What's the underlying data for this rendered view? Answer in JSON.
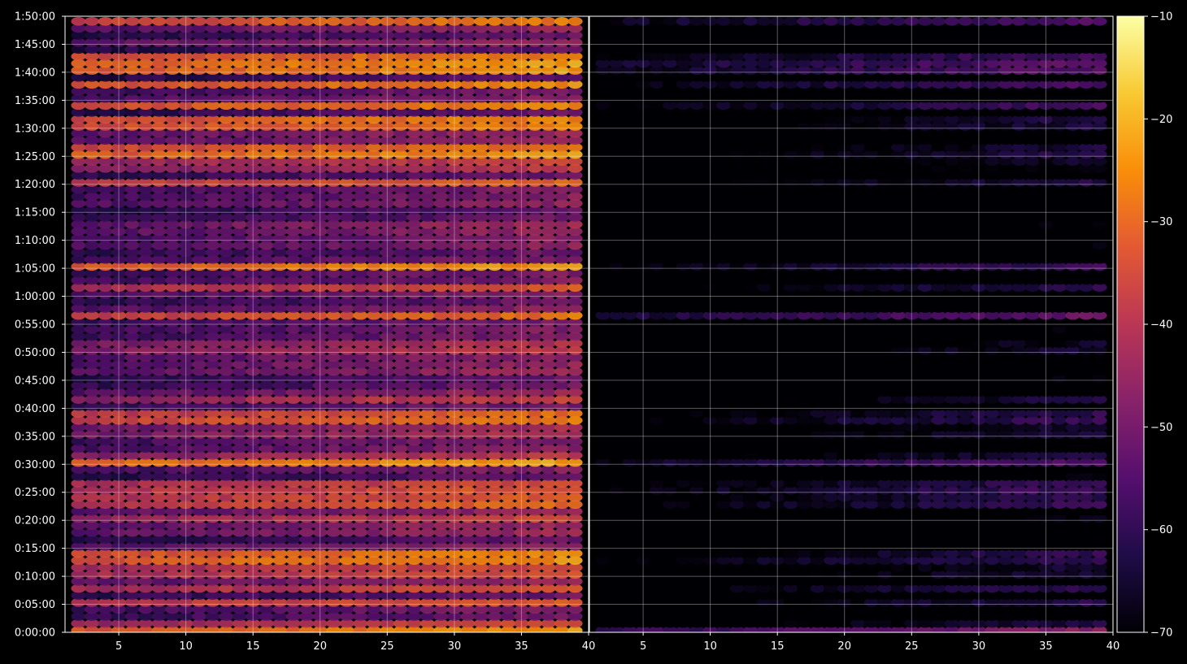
{
  "chart_data": {
    "type": "heatmap",
    "title": "",
    "theme": {
      "background": "#000000",
      "text": "#ffffff",
      "grid": "#ffffff",
      "colormap": "inferno"
    },
    "colorbar": {
      "min": -70,
      "max": -10,
      "ticks": [
        "−10",
        "−20",
        "−30",
        "−40",
        "−50",
        "−60",
        "−70"
      ],
      "tick_values": [
        -10,
        -20,
        -30,
        -40,
        -50,
        -60,
        -70
      ],
      "position": "right"
    },
    "y_axis": {
      "min": 0,
      "max": 6600,
      "ticks": [
        "0:00:00",
        "0:05:00",
        "0:10:00",
        "0:15:00",
        "0:20:00",
        "0:25:00",
        "0:30:00",
        "0:35:00",
        "0:40:00",
        "0:45:00",
        "0:50:00",
        "0:55:00",
        "1:00:00",
        "1:05:00",
        "1:10:00",
        "1:15:00",
        "1:20:00",
        "1:25:00",
        "1:30:00",
        "1:35:00",
        "1:40:00",
        "1:45:00",
        "1:50:00"
      ],
      "tick_values": [
        0,
        300,
        600,
        900,
        1200,
        1500,
        1800,
        2100,
        2400,
        2700,
        3000,
        3300,
        3600,
        3900,
        4200,
        4500,
        4800,
        5100,
        5400,
        5700,
        6000,
        6300,
        6600
      ]
    },
    "panels": [
      {
        "name": "",
        "x_min": 1,
        "x_max": 40,
        "x_ticks": [
          "5",
          "10",
          "15",
          "20",
          "25",
          "30",
          "35",
          "40"
        ],
        "x_tick_values": [
          5,
          10,
          15,
          20,
          25,
          30,
          35,
          40
        ],
        "baseline": -48,
        "channel_gain": 0.28
      },
      {
        "name": "",
        "x_min": 1,
        "x_max": 40,
        "x_ticks": [
          "5",
          "10",
          "15",
          "20",
          "25",
          "30",
          "35",
          "40"
        ],
        "x_tick_values": [
          5,
          10,
          15,
          20,
          25,
          30,
          35,
          40
        ],
        "baseline": -74,
        "channel_gain": 0.38
      }
    ],
    "rows": {
      "count": 88,
      "channels": [
        2,
        39
      ],
      "row_step_seconds": 75
    },
    "bright_bands": [
      {
        "time": 30,
        "left": -22,
        "right": -46
      },
      {
        "time": 90,
        "left": -34,
        "right": -62
      },
      {
        "time": 330,
        "left": -30,
        "right": -60
      },
      {
        "time": 450,
        "left": -31,
        "right": -57
      },
      {
        "time": 650,
        "left": -29,
        "right": -60
      },
      {
        "time": 800,
        "left": -20,
        "right": -55
      },
      {
        "time": 1200,
        "left": -33,
        "right": -65
      },
      {
        "time": 1400,
        "left": -26,
        "right": -55
      },
      {
        "time": 1550,
        "left": -28,
        "right": -54
      },
      {
        "time": 1800,
        "left": -19,
        "right": -52
      },
      {
        "time": 1850,
        "left": -33,
        "right": -58
      },
      {
        "time": 2150,
        "left": -37,
        "right": -60
      },
      {
        "time": 2300,
        "left": -24,
        "right": -55
      },
      {
        "time": 2500,
        "left": -36,
        "right": -62
      },
      {
        "time": 3050,
        "left": -35,
        "right": -61
      },
      {
        "time": 3400,
        "left": -27,
        "right": -51
      },
      {
        "time": 3680,
        "left": -31,
        "right": -59
      },
      {
        "time": 3920,
        "left": -22,
        "right": -57
      },
      {
        "time": 4800,
        "left": -27,
        "right": -60
      },
      {
        "time": 5020,
        "left": -33,
        "right": -62
      },
      {
        "time": 5120,
        "left": -22,
        "right": -61
      },
      {
        "time": 5200,
        "left": -26,
        "right": -63
      },
      {
        "time": 5460,
        "left": -21,
        "right": -58
      },
      {
        "time": 5640,
        "left": -24,
        "right": -56
      },
      {
        "time": 5860,
        "left": -23,
        "right": -55
      },
      {
        "time": 6060,
        "left": -18,
        "right": -49
      },
      {
        "time": 6140,
        "left": -22,
        "right": -53
      },
      {
        "time": 6560,
        "left": -25,
        "right": -53
      }
    ]
  }
}
